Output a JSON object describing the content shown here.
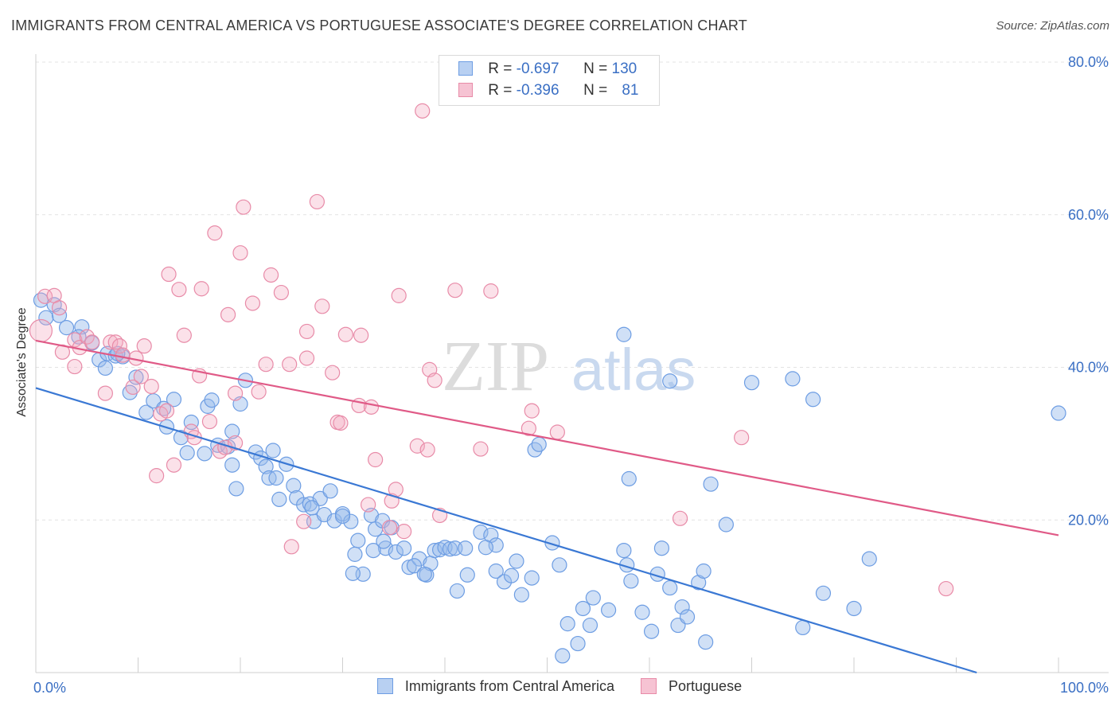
{
  "title": "IMMIGRANTS FROM CENTRAL AMERICA VS PORTUGUESE ASSOCIATE'S DEGREE CORRELATION CHART",
  "source": "Source: ZipAtlas.com",
  "watermark": {
    "zip": "ZIP",
    "atlas": "atlas"
  },
  "legend": {
    "r_label": "R =",
    "n_label": "N =",
    "series": [
      {
        "name": "Immigrants from Central America",
        "r": "-0.697",
        "n": "130",
        "color": "#6d9de3",
        "fill": "#b8d0f2"
      },
      {
        "name": "Portuguese",
        "r": "-0.396",
        "n": "81",
        "color": "#e88ba8",
        "fill": "#f6c3d3"
      }
    ]
  },
  "chart_data": {
    "type": "scatter",
    "title": "IMMIGRANTS FROM CENTRAL AMERICA VS PORTUGUESE ASSOCIATE'S DEGREE CORRELATION CHART",
    "xlabel": "",
    "ylabel": "Associate's Degree",
    "xlim": [
      0,
      100
    ],
    "ylim": [
      0,
      80
    ],
    "x_tick_labels": [
      "0.0%",
      "100.0%"
    ],
    "y_ticks": [
      20,
      40,
      60,
      80
    ],
    "y_tick_labels": [
      "20.0%",
      "40.0%",
      "60.0%",
      "80.0%"
    ],
    "grid": true,
    "series": [
      {
        "name": "Immigrants from Central America",
        "color": "#3a78d4",
        "trend": {
          "x": [
            0,
            92
          ],
          "y": [
            37.3,
            0
          ]
        },
        "points": [
          [
            0.5,
            48.8
          ],
          [
            1,
            46.5
          ],
          [
            1.8,
            48.2
          ],
          [
            2.3,
            46.8
          ],
          [
            3,
            45.2
          ],
          [
            4.5,
            45.3
          ],
          [
            4.2,
            44.0
          ],
          [
            5.5,
            43.2
          ],
          [
            6.2,
            41.0
          ],
          [
            7,
            41.8
          ],
          [
            6.8,
            39.9
          ],
          [
            7.8,
            41.5
          ],
          [
            8.5,
            41.4
          ],
          [
            9.8,
            38.7
          ],
          [
            9.2,
            36.7
          ],
          [
            10.8,
            34.1
          ],
          [
            11.5,
            35.6
          ],
          [
            12.5,
            34.6
          ],
          [
            13.5,
            35.8
          ],
          [
            12.8,
            32.2
          ],
          [
            14.2,
            30.8
          ],
          [
            14.8,
            28.8
          ],
          [
            15.2,
            32.8
          ],
          [
            16.5,
            28.7
          ],
          [
            16.8,
            34.9
          ],
          [
            17.2,
            35.7
          ],
          [
            17.8,
            29.8
          ],
          [
            18.8,
            29.6
          ],
          [
            19.2,
            31.6
          ],
          [
            19.2,
            27.2
          ],
          [
            19.6,
            24.1
          ],
          [
            20.5,
            38.3
          ],
          [
            21.5,
            28.9
          ],
          [
            22,
            28.1
          ],
          [
            22.5,
            27.0
          ],
          [
            22.8,
            25.5
          ],
          [
            23.2,
            29.1
          ],
          [
            23.8,
            22.7
          ],
          [
            24.5,
            27.3
          ],
          [
            25.2,
            24.5
          ],
          [
            25.5,
            22.9
          ],
          [
            26.2,
            22.0
          ],
          [
            26.8,
            22.1
          ],
          [
            27.2,
            19.8
          ],
          [
            27.8,
            22.8
          ],
          [
            28.2,
            20.7
          ],
          [
            28.8,
            23.8
          ],
          [
            29.2,
            19.9
          ],
          [
            30,
            20.8
          ],
          [
            30.8,
            19.8
          ],
          [
            31.5,
            17.3
          ],
          [
            31.2,
            15.5
          ],
          [
            32,
            12.9
          ],
          [
            32.8,
            20.6
          ],
          [
            33.2,
            18.8
          ],
          [
            33.9,
            19.9
          ],
          [
            34.2,
            16.3
          ],
          [
            34.8,
            19.0
          ],
          [
            35.2,
            15.8
          ],
          [
            36,
            16.3
          ],
          [
            36.5,
            13.8
          ],
          [
            37.5,
            14.9
          ],
          [
            38.2,
            12.8
          ],
          [
            38.6,
            14.3
          ],
          [
            39,
            16.0
          ],
          [
            39.5,
            16.1
          ],
          [
            40,
            16.4
          ],
          [
            40.5,
            16.2
          ],
          [
            41,
            16.3
          ],
          [
            41.2,
            10.7
          ],
          [
            42.2,
            12.8
          ],
          [
            43.5,
            18.4
          ],
          [
            44.5,
            18.0
          ],
          [
            45,
            16.7
          ],
          [
            45,
            13.3
          ],
          [
            45.8,
            11.9
          ],
          [
            46.5,
            12.7
          ],
          [
            47,
            14.6
          ],
          [
            47.5,
            10.2
          ],
          [
            48.5,
            12.4
          ],
          [
            48.8,
            29.2
          ],
          [
            49.2,
            29.9
          ],
          [
            50.5,
            17.0
          ],
          [
            51.2,
            14.1
          ],
          [
            52,
            6.4
          ],
          [
            53.5,
            8.4
          ],
          [
            54.5,
            9.8
          ],
          [
            54.2,
            6.2
          ],
          [
            53,
            3.8
          ],
          [
            51.5,
            2.2
          ],
          [
            56,
            8.2
          ],
          [
            57.5,
            16.0
          ],
          [
            57.8,
            14.1
          ],
          [
            58.2,
            12.0
          ],
          [
            59.3,
            7.9
          ],
          [
            60.2,
            5.4
          ],
          [
            60.8,
            12.9
          ],
          [
            61.2,
            16.3
          ],
          [
            62,
            11.1
          ],
          [
            62.8,
            6.2
          ],
          [
            63.2,
            8.6
          ],
          [
            63.7,
            7.3
          ],
          [
            64.8,
            11.8
          ],
          [
            65.3,
            13.3
          ],
          [
            65.5,
            4.0
          ],
          [
            66,
            24.7
          ],
          [
            67.5,
            19.4
          ],
          [
            58,
            25.4
          ],
          [
            57.5,
            44.3
          ],
          [
            62,
            38.2
          ],
          [
            70,
            38.0
          ],
          [
            74,
            38.5
          ],
          [
            76,
            35.8
          ],
          [
            75,
            5.9
          ],
          [
            77,
            10.4
          ],
          [
            80,
            8.4
          ],
          [
            81.5,
            14.9
          ],
          [
            100,
            34.0
          ],
          [
            20,
            35.2
          ],
          [
            8.0,
            41.8
          ],
          [
            23.5,
            25.5
          ],
          [
            30,
            20.5
          ],
          [
            31,
            13.0
          ],
          [
            37,
            14.0
          ],
          [
            42,
            16.3
          ],
          [
            34,
            17.2
          ],
          [
            33,
            16.0
          ],
          [
            38,
            12.9
          ],
          [
            44,
            16.4
          ],
          [
            27,
            21.6
          ]
        ]
      },
      {
        "name": "Portuguese",
        "color": "#e05a87",
        "trend": {
          "x": [
            0,
            100
          ],
          "y": [
            43.5,
            18.0
          ]
        },
        "points": [
          [
            0.5,
            44.8
          ],
          [
            0.9,
            49.3
          ],
          [
            1.8,
            49.4
          ],
          [
            2.3,
            47.8
          ],
          [
            2.6,
            42.0
          ],
          [
            3.8,
            43.6
          ],
          [
            3.8,
            40.1
          ],
          [
            4.3,
            42.6
          ],
          [
            5,
            44.0
          ],
          [
            5.5,
            43.3
          ],
          [
            6.8,
            36.6
          ],
          [
            7.3,
            43.3
          ],
          [
            7.8,
            43.3
          ],
          [
            8.2,
            42.8
          ],
          [
            8.5,
            41.6
          ],
          [
            9.5,
            37.4
          ],
          [
            9.8,
            41.2
          ],
          [
            10.3,
            38.8
          ],
          [
            10.6,
            42.8
          ],
          [
            11.3,
            37.5
          ],
          [
            11.8,
            25.8
          ],
          [
            12.2,
            33.9
          ],
          [
            12.8,
            34.3
          ],
          [
            13,
            52.2
          ],
          [
            13.5,
            27.2
          ],
          [
            14,
            50.2
          ],
          [
            14.5,
            44.2
          ],
          [
            15.2,
            31.6
          ],
          [
            15.5,
            30.8
          ],
          [
            16,
            38.9
          ],
          [
            16.2,
            50.3
          ],
          [
            17,
            32.9
          ],
          [
            17.5,
            57.6
          ],
          [
            18,
            29.0
          ],
          [
            18.5,
            29.5
          ],
          [
            18.8,
            46.9
          ],
          [
            19.5,
            36.6
          ],
          [
            19.5,
            30.1
          ],
          [
            20,
            55.0
          ],
          [
            20.3,
            61.0
          ],
          [
            21.2,
            48.4
          ],
          [
            21.8,
            36.8
          ],
          [
            22.5,
            40.4
          ],
          [
            23,
            52.1
          ],
          [
            24,
            49.8
          ],
          [
            24.8,
            40.4
          ],
          [
            25,
            16.5
          ],
          [
            26.2,
            19.8
          ],
          [
            26.5,
            41.2
          ],
          [
            26.5,
            44.7
          ],
          [
            27.5,
            61.7
          ],
          [
            28,
            48.0
          ],
          [
            29,
            39.3
          ],
          [
            29.5,
            32.8
          ],
          [
            29.8,
            32.7
          ],
          [
            30.3,
            44.3
          ],
          [
            31.6,
            35.0
          ],
          [
            31.8,
            44.2
          ],
          [
            32.5,
            22.0
          ],
          [
            32.8,
            34.8
          ],
          [
            33.2,
            27.9
          ],
          [
            34.6,
            19.0
          ],
          [
            34.8,
            22.5
          ],
          [
            35.2,
            24.0
          ],
          [
            35.5,
            49.4
          ],
          [
            36,
            18.5
          ],
          [
            37.3,
            29.7
          ],
          [
            37.8,
            73.6
          ],
          [
            38.3,
            29.2
          ],
          [
            38.5,
            39.7
          ],
          [
            39,
            38.3
          ],
          [
            39.5,
            20.6
          ],
          [
            41,
            50.1
          ],
          [
            43.5,
            29.3
          ],
          [
            44.5,
            50.0
          ],
          [
            48.2,
            32.0
          ],
          [
            48.5,
            34.3
          ],
          [
            51,
            31.5
          ],
          [
            63,
            20.2
          ],
          [
            69,
            30.8
          ],
          [
            89,
            11.0
          ]
        ]
      }
    ]
  }
}
